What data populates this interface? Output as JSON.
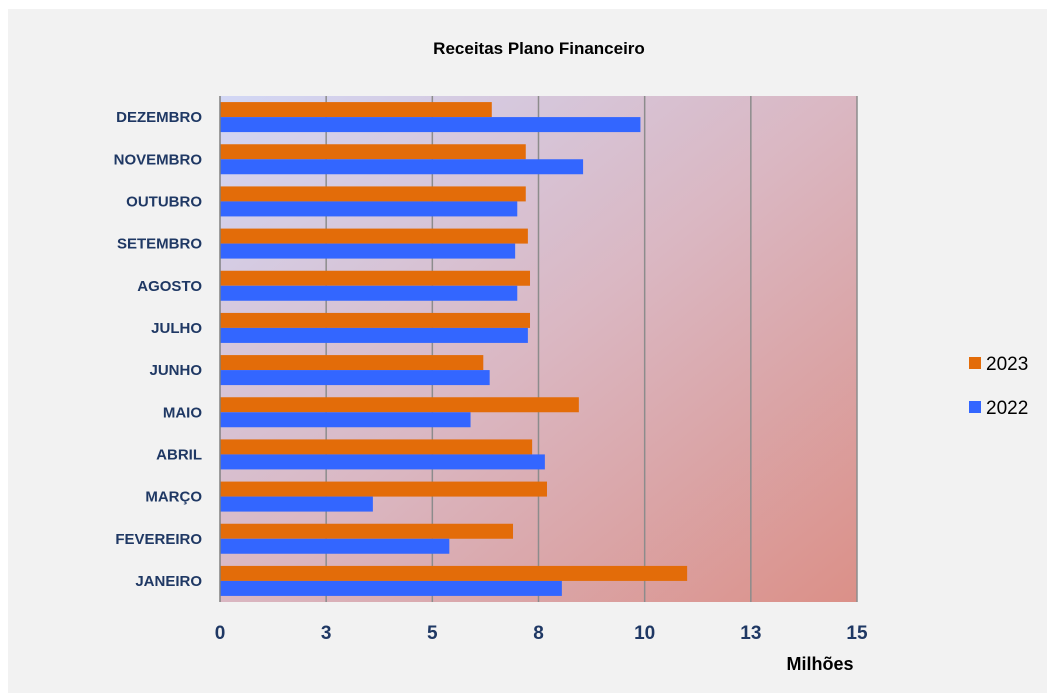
{
  "chart_data": {
    "type": "bar",
    "orientation": "horizontal",
    "title": "Receitas Plano Financeiro",
    "xlabel": "Milhões",
    "ylabel": "",
    "categories": [
      "JANEIRO",
      "FEVEREIRO",
      "MARÇO",
      "ABRIL",
      "MAIO",
      "JUNHO",
      "JULHO",
      "AGOSTO",
      "SETEMBRO",
      "OUTUBRO",
      "NOVEMBRO",
      "DEZEMBRO"
    ],
    "series": [
      {
        "name": "2023",
        "color": "#e36c09",
        "values": [
          11.0,
          6.9,
          7.7,
          7.35,
          8.45,
          6.2,
          7.3,
          7.3,
          7.25,
          7.2,
          7.2,
          6.4
        ]
      },
      {
        "name": "2022",
        "color": "#3366ff",
        "values": [
          8.05,
          5.4,
          3.6,
          7.65,
          5.9,
          6.35,
          7.25,
          7.0,
          6.95,
          7.0,
          8.55,
          9.9
        ]
      }
    ],
    "xlim": [
      0,
      15
    ],
    "x_ticks": [
      0,
      2.5,
      5,
      7.5,
      10,
      12.5,
      15
    ],
    "x_tick_labels": [
      "0",
      "3",
      "5",
      "8",
      "10",
      "13",
      "15"
    ],
    "grid": "vertical",
    "legend_position": "right"
  }
}
